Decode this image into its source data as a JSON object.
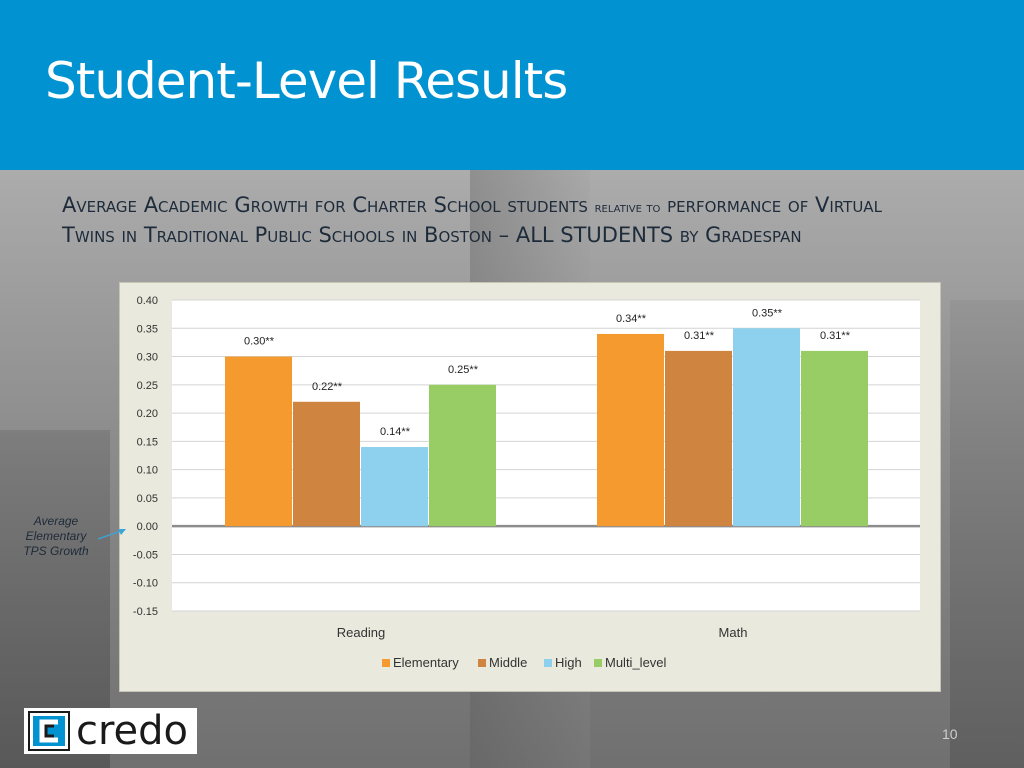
{
  "slide": {
    "title": "Student-Level Results",
    "subtitle_parts": {
      "p1": "Average Academic Growth for Charter School students",
      "p2": "relative to",
      "p3": "performance of Virtual Twins in Traditional Public Schools in Boston –",
      "p4": "ALL STUDENTS",
      "p5": "by Gradespan"
    },
    "annotation": "Average Elementary TPS Growth",
    "logo_text": "credo",
    "page_number": "10"
  },
  "colors": {
    "header": "#0092d1",
    "elementary": "#f59a2f",
    "middle": "#cf8540",
    "high": "#8dd1ee",
    "multi_level": "#98cd66"
  },
  "chart_data": {
    "type": "bar",
    "title": "",
    "xlabel": "",
    "ylabel": "",
    "categories": [
      "Reading",
      "Math"
    ],
    "series": [
      {
        "name": "Elementary",
        "values": [
          0.3,
          0.34
        ],
        "labels": [
          "0.30**",
          "0.34**"
        ]
      },
      {
        "name": "Middle",
        "values": [
          0.22,
          0.31
        ],
        "labels": [
          "0.22**",
          "0.31**"
        ]
      },
      {
        "name": "High",
        "values": [
          0.14,
          0.35
        ],
        "labels": [
          "0.14**",
          "0.35**"
        ]
      },
      {
        "name": "Multi_level",
        "values": [
          0.25,
          0.31
        ],
        "labels": [
          "0.25**",
          "0.31**"
        ]
      }
    ],
    "ylim": [
      -0.15,
      0.4
    ],
    "yticks": [
      "0.40",
      "0.35",
      "0.30",
      "0.25",
      "0.20",
      "0.15",
      "0.10",
      "0.05",
      "0.00",
      "-0.05",
      "-0.10",
      "-0.15"
    ],
    "ytick_values": [
      0.4,
      0.35,
      0.3,
      0.25,
      0.2,
      0.15,
      0.1,
      0.05,
      0.0,
      -0.05,
      -0.1,
      -0.15
    ],
    "grid": true,
    "legend_position": "bottom"
  }
}
